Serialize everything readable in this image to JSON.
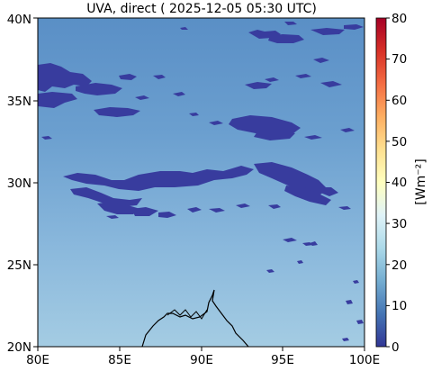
{
  "title": "UVA, direct ( 2025-12-05 05:30 UTC)",
  "colors": {
    "sky_top": "#5b92c8",
    "sky_bottom": "#9fc9e1",
    "cloud": "#3b3fa0",
    "coast": "#000000"
  },
  "map": {
    "lon_range": [
      80,
      100
    ],
    "lat_range": [
      20,
      40
    ],
    "x_ticks": [
      "80E",
      "85E",
      "90E",
      "95E",
      "100E"
    ],
    "y_ticks": [
      "20N",
      "25N",
      "30N",
      "35N",
      "40N"
    ]
  },
  "colorbar": {
    "ticks": [
      "0",
      "10",
      "20",
      "30",
      "40",
      "50",
      "60",
      "70",
      "80"
    ],
    "unit_label": "[Wm⁻²]",
    "colormap": "RdYlBu_r",
    "range": [
      0,
      80
    ]
  }
}
